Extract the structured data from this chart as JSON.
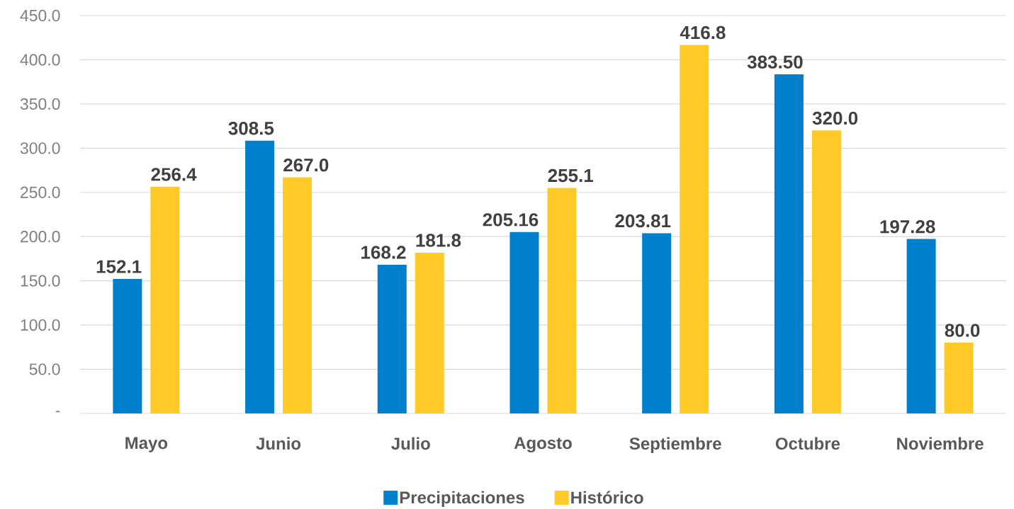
{
  "chart_data": {
    "type": "bar",
    "categories": [
      "Mayo",
      "Junio",
      "Julio",
      "Agosto",
      "Septiembre",
      "Octubre",
      "Noviembre"
    ],
    "series": [
      {
        "name": "Precipitaciones",
        "color": "#0080cc",
        "values": [
          152.1,
          308.5,
          168.2,
          205.16,
          203.81,
          383.5,
          197.28
        ],
        "value_labels": [
          "152.1",
          "308.5",
          "168.2",
          "205.16",
          "203.81",
          "383.50",
          "197.28"
        ]
      },
      {
        "name": "Histórico",
        "color": "#ffca28",
        "values": [
          256.4,
          267.0,
          181.8,
          255.1,
          416.8,
          320.0,
          80.0
        ],
        "value_labels": [
          "256.4",
          "267.0",
          "181.8",
          "255.1",
          "416.8",
          "320.0",
          "80.0"
        ]
      }
    ],
    "ylim": [
      0,
      450
    ],
    "yticks": [
      {
        "value": 0,
        "label": "-"
      },
      {
        "value": 50,
        "label": "50.0"
      },
      {
        "value": 100,
        "label": "100.0"
      },
      {
        "value": 150,
        "label": "150.0"
      },
      {
        "value": 200,
        "label": "200.0"
      },
      {
        "value": 250,
        "label": "250.0"
      },
      {
        "value": 300,
        "label": "300.0"
      },
      {
        "value": 350,
        "label": "350.0"
      },
      {
        "value": 400,
        "label": "400.0"
      },
      {
        "value": 450,
        "label": "450.0"
      }
    ],
    "grid": "y",
    "legend": "bottom"
  }
}
